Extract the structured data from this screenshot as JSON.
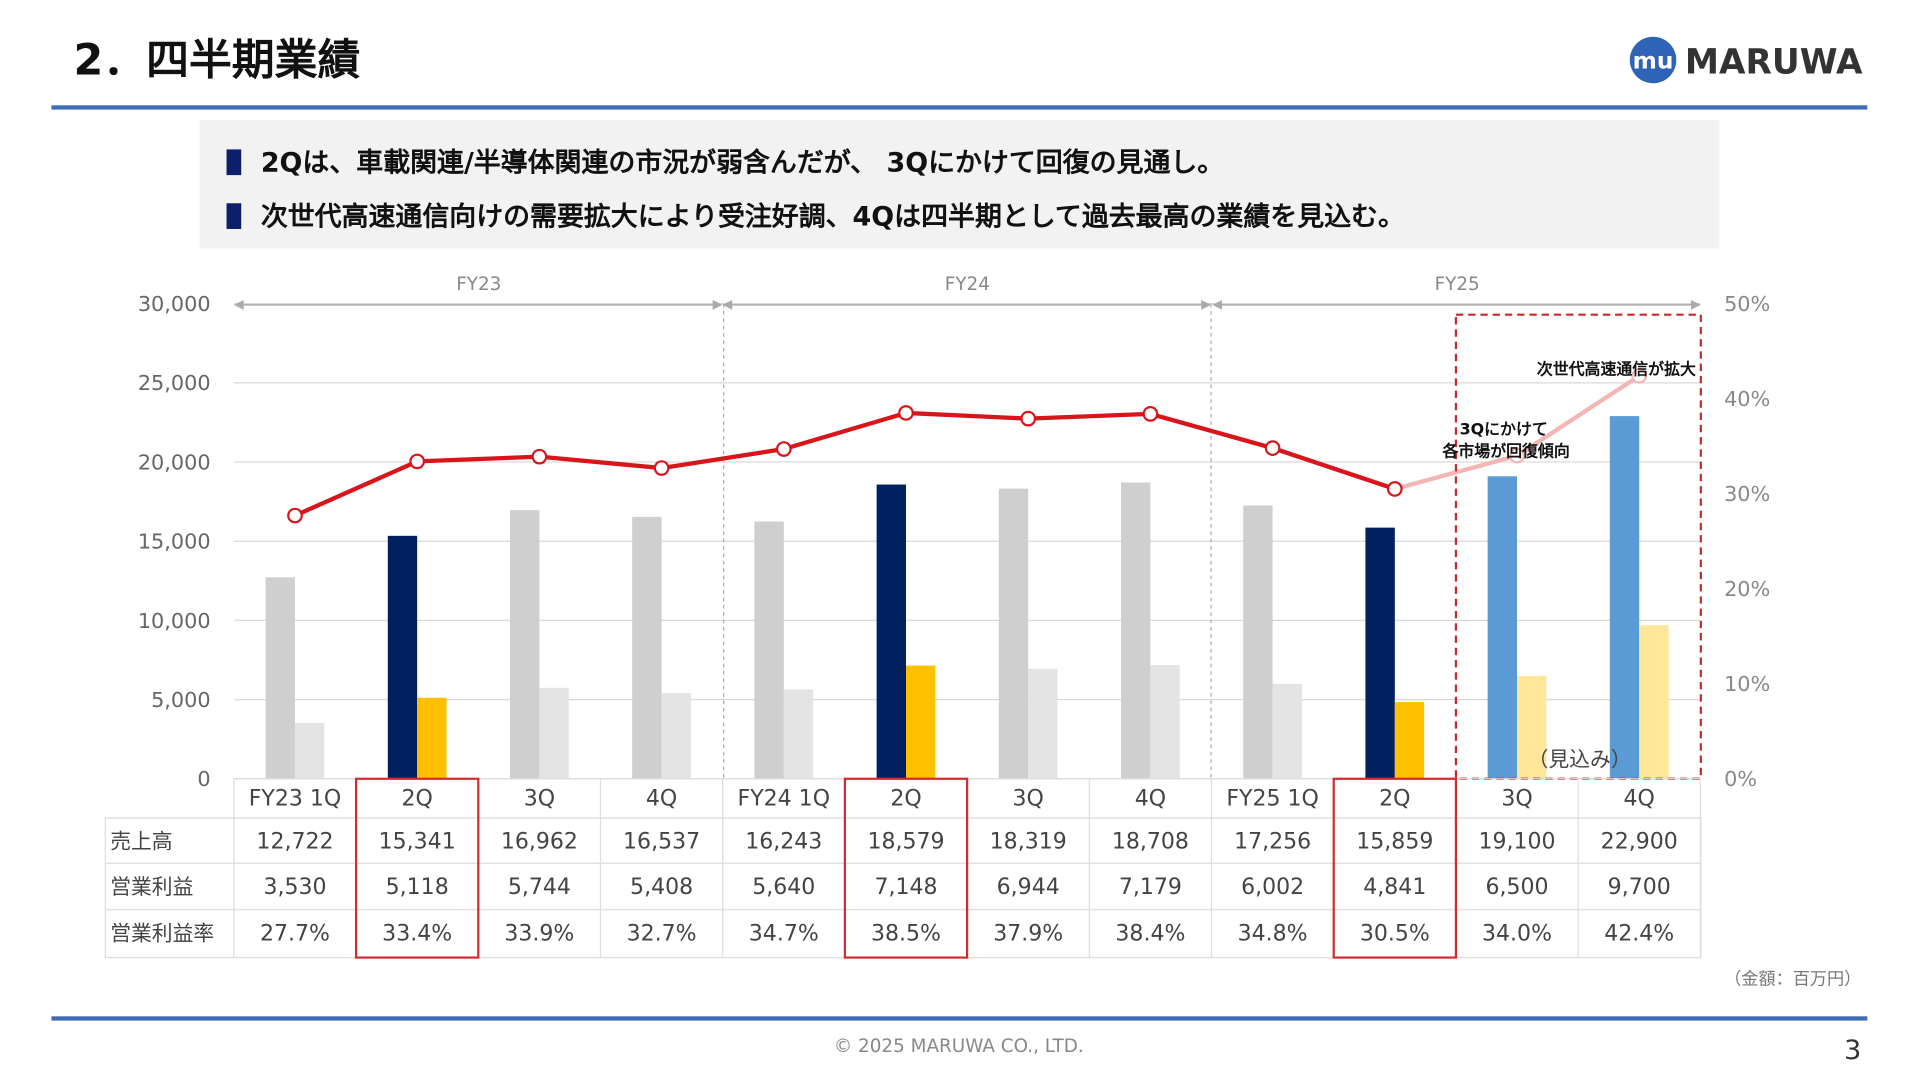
{
  "header": {
    "title": "2．四半期業績",
    "logo_text": "MARUWA",
    "logo_mark": "mu"
  },
  "summary": {
    "bullets": [
      "2Qは、車載関連/半導体関連の市況が弱含んだが、 3Qにかけて回復の見通し。",
      "次世代高速通信向けの需要拡大により受注好調、4Qは四半期として過去最高の業績を見込む。"
    ]
  },
  "chart_data": {
    "type": "bar",
    "fiscal_years": [
      "FY23",
      "FY24",
      "FY25"
    ],
    "categories": [
      "FY23 1Q",
      "2Q",
      "3Q",
      "4Q",
      "FY24 1Q",
      "2Q",
      "3Q",
      "4Q",
      "FY25 1Q",
      "2Q",
      "3Q",
      "4Q"
    ],
    "left_axis": {
      "ticks": [
        "30,000",
        "25,000",
        "20,000",
        "15,000",
        "10,000",
        "5,000",
        "0"
      ],
      "ylim": [
        0,
        30000
      ]
    },
    "right_axis": {
      "ticks": [
        "50%",
        "40%",
        "30%",
        "20%",
        "10%",
        "0%"
      ],
      "ylim": [
        0,
        50
      ]
    },
    "series": [
      {
        "name": "売上高",
        "values": [
          12722,
          15341,
          16962,
          16537,
          16243,
          18579,
          18319,
          18708,
          17256,
          15859,
          19100,
          22900
        ]
      },
      {
        "name": "営業利益",
        "values": [
          3530,
          5118,
          5744,
          5408,
          5640,
          7148,
          6944,
          7179,
          6002,
          4841,
          6500,
          9700
        ]
      },
      {
        "name": "営業利益率",
        "type": "line",
        "axis": "right",
        "values": [
          27.7,
          33.4,
          33.9,
          32.7,
          34.7,
          38.5,
          37.9,
          38.4,
          34.8,
          30.5,
          34.0,
          42.4
        ]
      }
    ],
    "table_values": {
      "売上高": [
        "12,722",
        "15,341",
        "16,962",
        "16,537",
        "16,243",
        "18,579",
        "18,319",
        "18,708",
        "17,256",
        "15,859",
        "19,100",
        "22,900"
      ],
      "営業利益": [
        "3,530",
        "5,118",
        "5,744",
        "5,408",
        "5,640",
        "7,148",
        "6,944",
        "7,179",
        "6,002",
        "4,841",
        "6,500",
        "9,700"
      ],
      "営業利益率": [
        "27.7%",
        "33.4%",
        "33.9%",
        "32.7%",
        "34.7%",
        "38.5%",
        "37.9%",
        "38.4%",
        "34.8%",
        "30.5%",
        "34.0%",
        "42.4%"
      ]
    },
    "row_labels": [
      "売上高",
      "営業利益",
      "営業利益率"
    ],
    "highlighted_indices": [
      1,
      5,
      9
    ],
    "forecast_indices": [
      10,
      11
    ],
    "forecast_label": "（見込み）",
    "annotations": [
      "3Qにかけて",
      "各市場が回復傾向",
      "次世代高速通信が拡大"
    ],
    "unit_note": "（金額：百万円）",
    "grid": true,
    "colors": {
      "sales_past": "#cfcfcf",
      "op_past": "#e4e4e4",
      "sales_2q": "#002060",
      "op_2q": "#ffc000",
      "sales_forecast": "#5b9bd5",
      "op_forecast": "#ffe699",
      "margin_line": "#d7151b",
      "margin_forecast": "#f4b5b5",
      "highlight_box": "#d42a2a"
    }
  },
  "footer": {
    "copyright": "© 2025 MARUWA CO., LTD.",
    "page_number": "3"
  },
  "colors": {
    "accent": "#3f6db5",
    "bullet": "#0c1f6b",
    "summary_bg": "#f2f2f2"
  }
}
